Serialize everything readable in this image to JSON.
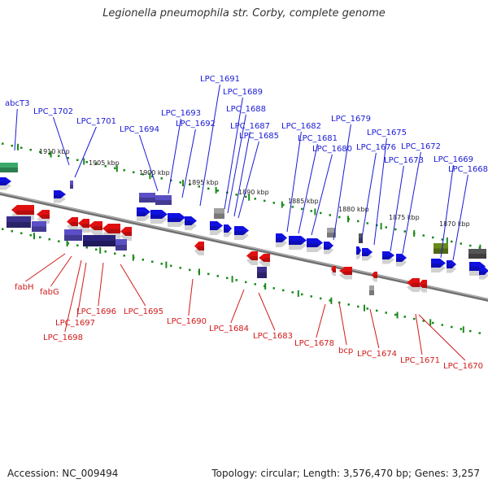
{
  "title": "Legionella pneumophila str. Corby, complete genome",
  "footer": {
    "accession": "Accession: NC_009494",
    "summary": "Topology: circular; Length: 3,576,470 bp; Genes: 3,257"
  },
  "colors": {
    "forward_label": "#1a1ad6",
    "reverse_label": "#d11a1a",
    "forward_gene": "#1010e0",
    "reverse_gene": "#e01010",
    "rna_gene": "#5a4fc4",
    "pseudo_gene": "#a0a0a0",
    "other_gene": "#3aa86a",
    "olive_gene": "#6a8a1a",
    "backbone": "#8a8a8a",
    "tick": "#1a8a1a"
  },
  "scale_labels": [
    "1910 kbp",
    "1905 kbp",
    "1900 kbp",
    "1895 kbp",
    "1890 kbp",
    "1885 kbp",
    "1880 kbp",
    "1875 kbp",
    "1870 kbp"
  ],
  "forward_labels": [
    "abcT3",
    "LPC_1702",
    "LPC_1701",
    "LPC_1694",
    "LPC_1693",
    "LPC_1692",
    "LPC_1691",
    "LPC_1689",
    "LPC_1688",
    "LPC_1687",
    "LPC_1685",
    "LPC_1682",
    "LPC_1681",
    "LPC_1680",
    "LPC_1679",
    "LPC_1676",
    "LPC_1675",
    "LPC_1673",
    "LPC_1672",
    "LPC_1669",
    "LPC_1668"
  ],
  "reverse_labels": [
    "fabH",
    "fabG",
    "LPC_1698",
    "LPC_1697",
    "LPC_1696",
    "LPC_1695",
    "LPC_1690",
    "LPC_1684",
    "LPC_1683",
    "LPC_1678",
    "bcp",
    "LPC_1674",
    "LPC_1671",
    "LPC_1670"
  ]
}
